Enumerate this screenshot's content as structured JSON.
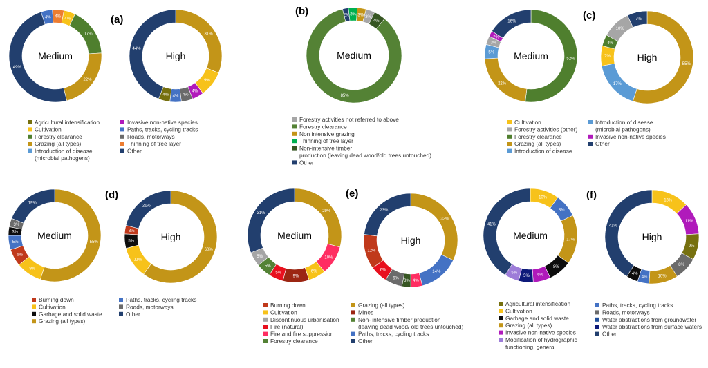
{
  "colors": {
    "agri": "#76700f",
    "cult": "#f7c21a",
    "forest": "#4f7f2e",
    "graz": "#c39518",
    "disease": "#5b9bd5",
    "invasive": "#b01abb",
    "paths": "#4472c4",
    "roads": "#6b6b6b",
    "thinning": "#ed7d31",
    "other": "#223f6e",
    "forestact": "#a6a6a6",
    "nonint": "#548235",
    "tlayer": "#00b050",
    "timber": "#375623",
    "burn": "#c0391b",
    "garbage": "#0d0d0d",
    "disc": "#a5a5a5",
    "fire": "#e8101e",
    "firesup": "#ff2e62",
    "mines": "#9c2613",
    "hydro": "#9d7cd8",
    "gw": "#1f4e9a",
    "sw": "#0d1a7a",
    "chernabled": "#1a9c3b"
  },
  "chart_data": [
    {
      "panel": "(a)",
      "type": "donut",
      "rings": [
        {
          "center": "Medium",
          "slices": [
            {
              "category": "Paths, tracks, cycling tracks",
              "value": 4
            },
            {
              "category": "Thinning of tree layer",
              "value": 4
            },
            {
              "category": "Cultivation",
              "value": 4
            },
            {
              "category": "Forestry clearance",
              "value": 17
            },
            {
              "category": "Grazing (all types)",
              "value": 22
            },
            {
              "category": "Other",
              "value": 49
            }
          ]
        },
        {
          "center": "High",
          "slices": [
            {
              "category": "Grazing (all types)",
              "value": 31
            },
            {
              "category": "Cultivation",
              "value": 9
            },
            {
              "category": "Invasive non-native species",
              "value": 4
            },
            {
              "category": "Roads, motorways",
              "value": 4
            },
            {
              "category": "Paths, tracks, cycling tracks",
              "value": 4
            },
            {
              "category": "Agricultural intensification",
              "value": 4
            },
            {
              "category": "Other",
              "value": 44
            }
          ]
        }
      ],
      "legend": [
        {
          "label": "Agricultural intensification",
          "color_key": "agri"
        },
        {
          "label": "Cultivation",
          "color_key": "cult"
        },
        {
          "label": "Forestry clearance",
          "color_key": "forest"
        },
        {
          "label": "Grazing (all types)",
          "color_key": "graz"
        },
        {
          "label": "Introduction of disease",
          "color_key": "disease"
        },
        {
          "label": "(microbial pathogens)",
          "color_key": ""
        },
        {
          "label": "Invasive non-native species",
          "color_key": "invasive"
        },
        {
          "label": "Paths, tracks, cycling tracks",
          "color_key": "paths"
        },
        {
          "label": "Roads, motorways",
          "color_key": "roads"
        },
        {
          "label": "Thinning of tree layer",
          "color_key": "thinning"
        },
        {
          "label": "Other",
          "color_key": "other"
        }
      ]
    },
    {
      "panel": "(b)",
      "type": "donut",
      "rings": [
        {
          "center": "Medium",
          "slices": [
            {
              "category": "Other",
              "value": 2
            },
            {
              "category": "Thinning of tree layer",
              "value": 3
            },
            {
              "category": "Non intensive grazing",
              "value": 3
            },
            {
              "category": "Forestry activities not referred to above",
              "value": 3
            },
            {
              "category": "Non-intensive timber production",
              "value": 4
            },
            {
              "category": "Forestry clearance",
              "value": 85
            }
          ]
        }
      ],
      "legend": [
        {
          "label": "Forestry activities not referred to above",
          "color_key": "forestact"
        },
        {
          "label": "Forestry clearance",
          "color_key": "nonint"
        },
        {
          "label": "Non intensive grazing",
          "color_key": "graz"
        },
        {
          "label": "Thinning of tree layer",
          "color_key": "tlayer"
        },
        {
          "label": "Non-intensive timber",
          "color_key": "timber"
        },
        {
          "label": "production (leaving dead wood/old trees untouched)",
          "color_key": ""
        },
        {
          "label": "Other",
          "color_key": "other"
        }
      ]
    },
    {
      "panel": "(c)",
      "type": "donut",
      "rings": [
        {
          "center": "Medium",
          "slices": [
            {
              "category": "Forestry clearance",
              "value": 52
            },
            {
              "category": "Grazing (all types)",
              "value": 22
            },
            {
              "category": "Introduction of disease",
              "value": 5
            },
            {
              "category": "Forestry activities (other)",
              "value": 3
            },
            {
              "category": "Invasive non-native species",
              "value": 2
            },
            {
              "category": "Other",
              "value": 16
            }
          ]
        },
        {
          "center": "High",
          "slices": [
            {
              "category": "Grazing (all types)",
              "value": 55
            },
            {
              "category": "Introduction of disease",
              "value": 17
            },
            {
              "category": "Cultivation",
              "value": 7
            },
            {
              "category": "Forestry clearance",
              "value": 4
            },
            {
              "category": "Forestry activities (other)",
              "value": 10
            },
            {
              "category": "Other",
              "value": 7
            }
          ]
        }
      ],
      "legend": [
        {
          "label": "Cultivation",
          "color_key": "cult"
        },
        {
          "label": "Forestry activities (other)",
          "color_key": "forestact"
        },
        {
          "label": "Forestry clearance",
          "color_key": "forest"
        },
        {
          "label": "Grazing (all types)",
          "color_key": "graz"
        },
        {
          "label": "Introduction of disease",
          "color_key": "disease"
        },
        {
          "label": "(microbial pathogens)",
          "color_key": ""
        },
        {
          "label": "Invasive non-native species",
          "color_key": "invasive"
        },
        {
          "label": "Other",
          "color_key": "other"
        }
      ]
    },
    {
      "panel": "(d)",
      "type": "donut",
      "rings": [
        {
          "center": "Medium",
          "slices": [
            {
              "category": "Grazing (all types)",
              "value": 55
            },
            {
              "category": "Cultivation",
              "value": 9
            },
            {
              "category": "Burning down",
              "value": 6
            },
            {
              "category": "Paths, tracks, cycling tracks",
              "value": 5
            },
            {
              "category": "Garbage and solid waste",
              "value": 3
            },
            {
              "category": "Roads, motorways",
              "value": 3
            },
            {
              "category": "Other",
              "value": 19
            }
          ]
        },
        {
          "center": "High",
          "slices": [
            {
              "category": "Grazing (all types)",
              "value": 60
            },
            {
              "category": "Cultivation",
              "value": 11
            },
            {
              "category": "Garbage and solid waste",
              "value": 5
            },
            {
              "category": "Burning down",
              "value": 3
            },
            {
              "category": "Other",
              "value": 21
            }
          ]
        }
      ],
      "legend": [
        {
          "label": "Burning down",
          "color_key": "burn"
        },
        {
          "label": "Cultivation",
          "color_key": "cult"
        },
        {
          "label": "Garbage and solid waste",
          "color_key": "garbage"
        },
        {
          "label": "Grazing (all types)",
          "color_key": "graz"
        },
        {
          "label": "Paths, tracks, cycling tracks",
          "color_key": "paths"
        },
        {
          "label": "Roads, motorways",
          "color_key": "roads"
        },
        {
          "label": "Other",
          "color_key": "other"
        }
      ]
    },
    {
      "panel": "(e)",
      "type": "donut",
      "rings": [
        {
          "center": "Medium",
          "slices": [
            {
              "category": "Grazing (all types)",
              "value": 29
            },
            {
              "category": "Fire and fire suppression",
              "value": 10
            },
            {
              "category": "Cultivation",
              "value": 6
            },
            {
              "category": "Mines",
              "value": 9
            },
            {
              "category": "Fire (natural)",
              "value": 5
            },
            {
              "category": "Forestry clearance",
              "value": 5
            },
            {
              "category": "Discontinuous urbanisation",
              "value": 5
            },
            {
              "category": "Other",
              "value": 31
            }
          ]
        },
        {
          "center": "High",
          "slices": [
            {
              "category": "Grazing (all types)",
              "value": 32
            },
            {
              "category": "Paths, tracks, cycling tracks",
              "value": 14
            },
            {
              "category": "Fire and fire suppression",
              "value": 4
            },
            {
              "category": "Non- intensive timber production",
              "value": 3
            },
            {
              "category": "Roads, motorways",
              "value": 6
            },
            {
              "category": "Fire (natural)",
              "value": 6
            },
            {
              "category": "Burning down",
              "value": 12
            },
            {
              "category": "Other",
              "value": 23
            }
          ]
        }
      ],
      "legend": [
        {
          "label": "Burning down",
          "color_key": "burn"
        },
        {
          "label": "Cultivation",
          "color_key": "cult"
        },
        {
          "label": "Discontinuous urbanisation",
          "color_key": "disc"
        },
        {
          "label": "Fire (natural)",
          "color_key": "fire"
        },
        {
          "label": "Fire and fire suppression",
          "color_key": "firesup"
        },
        {
          "label": "Forestry clearance",
          "color_key": "nonint"
        },
        {
          "label": "Grazing (all types)",
          "color_key": "graz"
        },
        {
          "label": "Mines",
          "color_key": "mines"
        },
        {
          "label": "Non- intensive timber production",
          "color_key": "nonint"
        },
        {
          "label": "(leaving dead wood/ old trees untouched)",
          "color_key": ""
        },
        {
          "label": "Paths, tracks, cycling tracks",
          "color_key": "paths"
        },
        {
          "label": "Other",
          "color_key": "other"
        }
      ]
    },
    {
      "panel": "(f)",
      "type": "donut",
      "rings": [
        {
          "center": "Medium",
          "slices": [
            {
              "category": "Cultivation",
              "value": 10
            },
            {
              "category": "Paths, tracks, cycling tracks",
              "value": 8
            },
            {
              "category": "Grazing (all types)",
              "value": 17
            },
            {
              "category": "Garbage and solid waste",
              "value": 8
            },
            {
              "category": "Invasive non-native species",
              "value": 6
            },
            {
              "category": "Water abstractions from surface waters",
              "value": 5
            },
            {
              "category": "Modification of hydrographic functioning, general",
              "value": 5
            },
            {
              "category": "Other",
              "value": 41
            }
          ]
        },
        {
          "center": "High",
          "slices": [
            {
              "category": "Cultivation",
              "value": 13
            },
            {
              "category": "Invasive non-native species",
              "value": 11
            },
            {
              "category": "Agricultural intensification",
              "value": 9
            },
            {
              "category": "Roads, motorways",
              "value": 8
            },
            {
              "category": "Grazing (all types)",
              "value": 10
            },
            {
              "category": "Paths, tracks, cycling tracks",
              "value": 4
            },
            {
              "category": "Garbage and solid waste",
              "value": 4
            },
            {
              "category": "Other",
              "value": 41
            }
          ]
        }
      ],
      "legend": [
        {
          "label": "Agricultural intensification",
          "color_key": "agri"
        },
        {
          "label": "Cultivation",
          "color_key": "cult"
        },
        {
          "label": "Garbage and solid waste",
          "color_key": "garbage"
        },
        {
          "label": "Grazing (all types)",
          "color_key": "graz"
        },
        {
          "label": "Invasive non-native species",
          "color_key": "invasive"
        },
        {
          "label": "Modification of hydrographic",
          "color_key": "hydro"
        },
        {
          "label": "functioning, general",
          "color_key": ""
        },
        {
          "label": "Paths, tracks, cycling tracks",
          "color_key": "paths"
        },
        {
          "label": "Roads, motorways",
          "color_key": "roads"
        },
        {
          "label": "Water abstractions from groundwater",
          "color_key": "gw"
        },
        {
          "label": "Water abstractions from surface waters",
          "color_key": "sw"
        },
        {
          "label": "Other",
          "color_key": "other"
        }
      ]
    }
  ]
}
